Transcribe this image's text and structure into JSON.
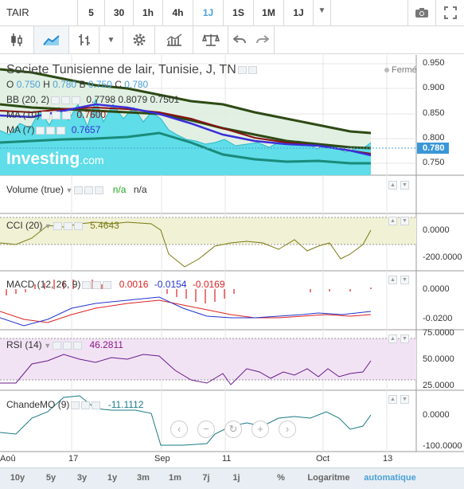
{
  "symbol": "TAIR",
  "timeframes": [
    "5",
    "30",
    "1h",
    "4h",
    "1J",
    "1S",
    "1M"
  ],
  "active_timeframe": "1J",
  "timeframe_dropdown": "1J",
  "instrument_title": "Societe Tunisienne de lair, Tunisie, J, TN",
  "market_status": "Fermé",
  "ohlc": {
    "o_label": "O",
    "o": "0.750",
    "h_label": "H",
    "h": "0.780",
    "b_label": "B",
    "b": "0.750",
    "c_label": "C",
    "c": "0.780"
  },
  "bb": {
    "label": "BB (20, 2)",
    "v1": "0.7798",
    "v2": "0.8079",
    "v3": "0.7501"
  },
  "ma10": {
    "label": "MA (10)",
    "v": "0.7600"
  },
  "ma7": {
    "label": "MA (7)",
    "v": "0.7657"
  },
  "logo": "Investing",
  "logo_suffix": ".com",
  "volume": {
    "label": "Volume (true)",
    "v1": "n/a",
    "v2": "n/a"
  },
  "cci": {
    "label": "CCI (20)",
    "v": "5.4643"
  },
  "macd": {
    "label": "MACD (12, 26, 9)",
    "v1": "0.0016",
    "v2": "-0.0154",
    "v3": "-0.0169"
  },
  "rsi": {
    "label": "RSI (14)",
    "v": "46.2811"
  },
  "chande": {
    "label": "ChandeMO (9)",
    "v": "-11.1112"
  },
  "price_axis": [
    "0.950",
    "0.900",
    "0.850",
    "0.800",
    "0.750"
  ],
  "last_price": "0.780",
  "cci_axis": [
    "0.0000",
    "-200.0000"
  ],
  "macd_axis": [
    "0.0000",
    "-0.0200"
  ],
  "rsi_axis": [
    "75.0000",
    "50.0000",
    "25.0000"
  ],
  "cmo_axis": [
    "0.0000",
    "-100.0000"
  ],
  "date_axis": [
    "Aoû",
    "17",
    "Sep",
    "11",
    "Oct",
    "13"
  ],
  "ranges": [
    "10y",
    "5y",
    "3y",
    "1y",
    "3m",
    "1m",
    "7j",
    "1j",
    "%",
    "Logaritme",
    "automatique"
  ],
  "active_range": "automatique",
  "colors": {
    "accent": "#4aa0d8",
    "bb_fill": "#dfeee0",
    "bb_line": "#2d4a14",
    "price_fill": "#5fdde8",
    "ma7": "#3a2fd8",
    "ma10": "#8a1010",
    "cci_band": "#f1f1d6",
    "rsi_band": "#f1e3f4",
    "macd_red": "#dd2222",
    "macd_blue": "#2233cc",
    "cmo": "#1a7a85"
  }
}
